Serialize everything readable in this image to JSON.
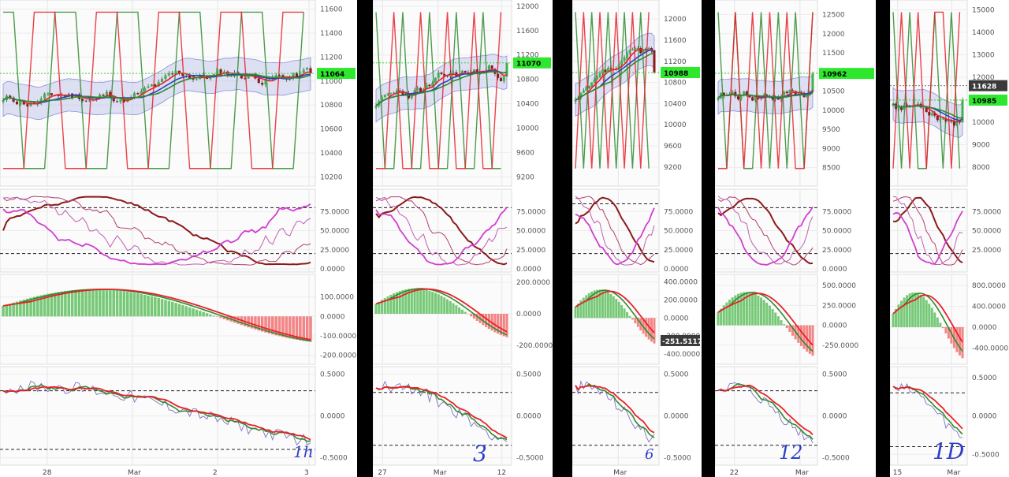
{
  "chart_data": [
    {
      "type": "candlestick",
      "timeframe_label": "1h",
      "x_labels": [
        "28",
        "Mar",
        "2",
        "3"
      ],
      "price": {
        "ylim": [
          10150,
          11650
        ],
        "ticks": [
          "10200",
          "10400",
          "10600",
          "10800",
          "11000",
          "11200",
          "11400",
          "11600"
        ],
        "last": 11064,
        "last_label": "11064"
      },
      "stoch": {
        "ylim": [
          0,
          100
        ],
        "ticks": [
          "0.0000",
          "25.0000",
          "50.0000",
          "75.0000"
        ],
        "levels": [
          20,
          80
        ]
      },
      "macd": {
        "ylim": [
          -230,
          200
        ],
        "ticks": [
          "-200.0000",
          "-100.0000",
          "0.0000",
          "100.0000"
        ]
      },
      "osc": {
        "ylim": [
          -0.55,
          0.55
        ],
        "ticks": [
          "-0.5000",
          "0.0000",
          "0.5000"
        ],
        "levels": [
          -0.4,
          0.3
        ]
      }
    },
    {
      "type": "candlestick",
      "timeframe_label": "3",
      "x_labels": [
        "27",
        "Mar",
        "12"
      ],
      "price": {
        "ylim": [
          9100,
          12050
        ],
        "ticks": [
          "9200",
          "9600",
          "10000",
          "10400",
          "10800",
          "11200",
          "11600",
          "12000"
        ],
        "last": 11070,
        "last_label": "11070"
      },
      "stoch": {
        "ylim": [
          0,
          100
        ],
        "ticks": [
          "0.0000",
          "25.0000",
          "50.0000",
          "75.0000"
        ],
        "levels": [
          20,
          80
        ]
      },
      "macd": {
        "ylim": [
          -300,
          230
        ],
        "ticks": [
          "-200.0000",
          "0.0000",
          "200.0000"
        ]
      },
      "osc": {
        "ylim": [
          -0.55,
          0.55
        ],
        "ticks": [
          "-0.5000",
          "0.0000",
          "0.5000"
        ],
        "levels": [
          -0.35,
          0.28
        ]
      }
    },
    {
      "type": "candlestick",
      "timeframe_label": "6",
      "x_labels": [
        "Mar"
      ],
      "price": {
        "ylim": [
          8900,
          12300
        ],
        "ticks": [
          "9200",
          "9600",
          "10000",
          "10400",
          "10800",
          "11200",
          "11600",
          "12000"
        ],
        "last": 10988,
        "last_label": "10988"
      },
      "stoch": {
        "ylim": [
          0,
          100
        ],
        "ticks": [
          "0.0000",
          "25.0000",
          "50.0000",
          "75.0000"
        ],
        "levels": [
          20,
          85
        ]
      },
      "macd": {
        "ylim": [
          -480,
          450
        ],
        "ticks": [
          "-400.0000",
          "-200.0000",
          "0.0000",
          "200.0000",
          "400.0000"
        ],
        "marker": -251.5117,
        "marker_label": "-251.5117"
      },
      "osc": {
        "ylim": [
          -0.55,
          0.55
        ],
        "ticks": [
          "-0.5000",
          "0.0000",
          "0.5000"
        ],
        "levels": [
          -0.35,
          0.28
        ]
      }
    },
    {
      "type": "candlestick",
      "timeframe_label": "12",
      "x_labels": [
        "22",
        "Mar"
      ],
      "price": {
        "ylim": [
          8100,
          12800
        ],
        "ticks": [
          "8500",
          "9000",
          "9500",
          "10000",
          "10500",
          "11000",
          "11500",
          "12000",
          "12500"
        ],
        "last": 10962,
        "last_label": "10962"
      },
      "stoch": {
        "ylim": [
          0,
          100
        ],
        "ticks": [
          "0.0000",
          "25.0000",
          "50.0000",
          "75.0000"
        ],
        "levels": [
          20,
          80
        ]
      },
      "macd": {
        "ylim": [
          -450,
          600
        ],
        "ticks": [
          "-250.0000",
          "0.0000",
          "250.0000",
          "500.0000"
        ]
      },
      "osc": {
        "ylim": [
          -0.55,
          0.55
        ],
        "ticks": [
          "-0.5000",
          "0.0000",
          "0.5000"
        ],
        "levels": [
          -0.35,
          0.3
        ]
      }
    },
    {
      "type": "candlestick",
      "timeframe_label": "1D",
      "x_labels": [
        "15",
        "Mar"
      ],
      "price": {
        "ylim": [
          7300,
          15300
        ],
        "ticks": [
          "8000",
          "9000",
          "10000",
          "11000",
          "12000",
          "13000",
          "14000",
          "15000"
        ],
        "last": 10985,
        "last_label": "10985",
        "marker": 11628,
        "marker_label": "11628"
      },
      "stoch": {
        "ylim": [
          0,
          100
        ],
        "ticks": [
          "25.0000",
          "50.0000",
          "75.0000"
        ],
        "levels": [
          20,
          80
        ]
      },
      "macd": {
        "ylim": [
          -650,
          950
        ],
        "ticks": [
          "-400.0000",
          "0.0000",
          "400.0000",
          "800.0000"
        ]
      },
      "osc": {
        "ylim": [
          -0.6,
          0.6
        ],
        "ticks": [
          "-0.5000",
          "0.0000",
          "0.5000"
        ],
        "levels": [
          -0.4,
          0.3
        ]
      }
    }
  ],
  "colors": {
    "up": "#3cb44b",
    "down": "#8b1a1a",
    "band": "#b9bde8",
    "red_line": "#e8202a",
    "green_line": "#2e8b2e",
    "blue_line": "#3040c0",
    "magenta": "#d03fd0",
    "price_tag": "#2ee82e",
    "marker_tag": "#3a3a3a",
    "annotation_blue": "#2d3fc8"
  }
}
